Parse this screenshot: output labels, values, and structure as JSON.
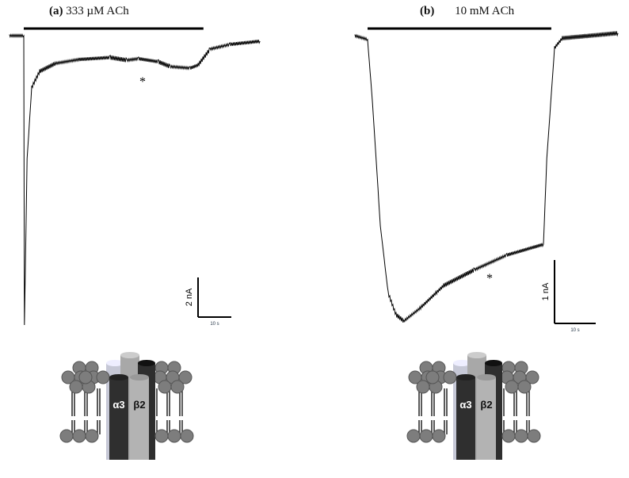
{
  "chart_data": [
    {
      "type": "line",
      "panel_label": "(a)",
      "title": "333 µM ACh",
      "marker": "*",
      "scale_bar": {
        "y_label": "2 nA",
        "y_value_nA": 2,
        "x_label": "10 s",
        "x_value_s": 10
      },
      "application_s": [
        0,
        54
      ],
      "series": [
        {
          "x_s": [
            -4.3,
            0,
            0.2,
            1,
            2.4,
            4.8,
            9.5,
            16.7,
            26,
            31,
            34.5,
            40.5,
            44,
            50,
            52.4,
            56,
            62,
            71
          ],
          "y_nA": [
            0,
            0,
            -14.6,
            -6.2,
            -2.6,
            -1.8,
            -1.4,
            -1.2,
            -1.1,
            -1.24,
            -1.16,
            -1.32,
            -1.56,
            -1.64,
            -1.48,
            -0.68,
            -0.44,
            -0.28
          ]
        }
      ],
      "channel_subunits": [
        "α3",
        "β2"
      ]
    },
    {
      "type": "line",
      "panel_label": "(b)",
      "title": "10 mM ACh",
      "marker": "*",
      "scale_bar": {
        "y_label": "1 nA",
        "y_value_nA": 1,
        "x_label": "10 s",
        "x_value_s": 10
      },
      "application_s": [
        0,
        44.6
      ],
      "series": [
        {
          "x_s": [
            -3.1,
            0,
            1.2,
            3.1,
            5,
            6.9,
            8.8,
            12.7,
            18.5,
            26,
            33.8,
            42.7,
            43.5,
            45.4,
            47.3,
            60.8
          ],
          "y_nA": [
            0,
            -0.06,
            -1.06,
            -3.0,
            -4.06,
            -4.4,
            -4.5,
            -4.3,
            -3.94,
            -3.69,
            -3.46,
            -3.29,
            -1.94,
            -0.19,
            -0.04,
            0.04
          ]
        }
      ],
      "channel_subunits": [
        "α3",
        "β2"
      ]
    }
  ]
}
